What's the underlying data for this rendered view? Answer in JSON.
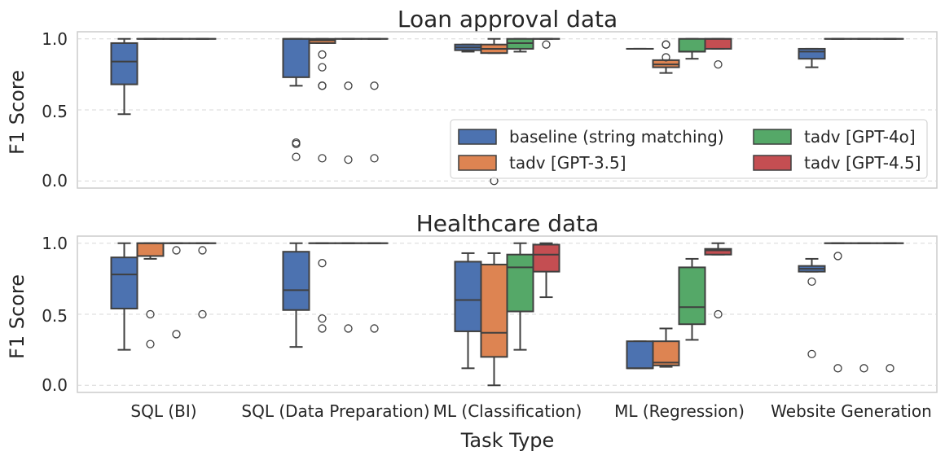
{
  "colors": {
    "baseline": "#4c72b0",
    "gpt35": "#dd8452",
    "gpt4o": "#55a868",
    "gpt45": "#c44e52",
    "line": "#3f3f3f"
  },
  "chart_data": [
    {
      "type": "box",
      "title": "Loan approval data",
      "ylabel": "F1 Score",
      "xlabel": "",
      "ylim": [
        -0.05,
        1.05
      ],
      "yticks": [
        "0.0",
        "0.5",
        "1.0"
      ],
      "grid": true,
      "legend_position": "lower-right",
      "categories": [
        "SQL (BI)",
        "SQL (Data Preparation)",
        "ML (Classification)",
        "ML (Regression)",
        "Website Generation"
      ],
      "series": [
        {
          "name": "baseline (string matching)",
          "boxes": [
            {
              "q1": 0.68,
              "median": 0.84,
              "q3": 0.97,
              "whisker_low": 0.47,
              "whisker_high": 1.0,
              "fliers": []
            },
            {
              "q1": 0.73,
              "median": 1.0,
              "q3": 1.0,
              "whisker_low": 0.67,
              "whisker_high": 1.0,
              "fliers": [
                0.27,
                0.26,
                0.17
              ]
            },
            {
              "q1": 0.92,
              "median": 0.94,
              "q3": 0.96,
              "whisker_low": 0.91,
              "whisker_high": 0.96,
              "fliers": []
            },
            {
              "q1": 0.93,
              "median": 0.93,
              "q3": 0.93,
              "whisker_low": 0.93,
              "whisker_high": 0.93,
              "fliers": []
            },
            {
              "q1": 0.86,
              "median": 0.91,
              "q3": 0.93,
              "whisker_low": 0.8,
              "whisker_high": 0.93,
              "fliers": []
            }
          ]
        },
        {
          "name": "tadv [GPT-3.5]",
          "boxes": [
            {
              "q1": 1.0,
              "median": 1.0,
              "q3": 1.0,
              "whisker_low": 1.0,
              "whisker_high": 1.0,
              "fliers": []
            },
            {
              "q1": 0.97,
              "median": 0.99,
              "q3": 1.0,
              "whisker_low": 0.97,
              "whisker_high": 1.0,
              "fliers": [
                0.89,
                0.8,
                0.67,
                0.67,
                0.16
              ]
            },
            {
              "q1": 0.9,
              "median": 0.93,
              "q3": 0.96,
              "whisker_low": 0.9,
              "whisker_high": 1.0,
              "fliers": [
                0.0
              ]
            },
            {
              "q1": 0.8,
              "median": 0.82,
              "q3": 0.85,
              "whisker_low": 0.76,
              "whisker_high": 0.85,
              "fliers": [
                0.96,
                0.87,
                0.96
              ]
            },
            {
              "q1": 1.0,
              "median": 1.0,
              "q3": 1.0,
              "whisker_low": 1.0,
              "whisker_high": 1.0,
              "fliers": []
            }
          ]
        },
        {
          "name": "tadv [GPT-4o]",
          "boxes": [
            {
              "q1": 1.0,
              "median": 1.0,
              "q3": 1.0,
              "whisker_low": 1.0,
              "whisker_high": 1.0,
              "fliers": []
            },
            {
              "q1": 1.0,
              "median": 1.0,
              "q3": 1.0,
              "whisker_low": 1.0,
              "whisker_high": 1.0,
              "fliers": [
                0.67,
                0.15
              ]
            },
            {
              "q1": 0.93,
              "median": 0.97,
              "q3": 1.0,
              "whisker_low": 0.91,
              "whisker_high": 1.0,
              "fliers": []
            },
            {
              "q1": 0.91,
              "median": 0.91,
              "q3": 1.0,
              "whisker_low": 0.86,
              "whisker_high": 1.0,
              "fliers": []
            },
            {
              "q1": 1.0,
              "median": 1.0,
              "q3": 1.0,
              "whisker_low": 1.0,
              "whisker_high": 1.0,
              "fliers": []
            }
          ]
        },
        {
          "name": "tadv [GPT-4.5]",
          "boxes": [
            {
              "q1": 1.0,
              "median": 1.0,
              "q3": 1.0,
              "whisker_low": 1.0,
              "whisker_high": 1.0,
              "fliers": []
            },
            {
              "q1": 1.0,
              "median": 1.0,
              "q3": 1.0,
              "whisker_low": 1.0,
              "whisker_high": 1.0,
              "fliers": [
                0.67,
                0.16
              ]
            },
            {
              "q1": 1.0,
              "median": 1.0,
              "q3": 1.0,
              "whisker_low": 1.0,
              "whisker_high": 1.0,
              "fliers": [
                0.96
              ]
            },
            {
              "q1": 0.93,
              "median": 1.0,
              "q3": 1.0,
              "whisker_low": 0.93,
              "whisker_high": 1.0,
              "fliers": [
                0.82
              ]
            },
            {
              "q1": 1.0,
              "median": 1.0,
              "q3": 1.0,
              "whisker_low": 1.0,
              "whisker_high": 1.0,
              "fliers": []
            }
          ]
        }
      ]
    },
    {
      "type": "box",
      "title": "Healthcare data",
      "ylabel": "F1 Score",
      "xlabel": "Task Type",
      "ylim": [
        -0.05,
        1.05
      ],
      "yticks": [
        "0.0",
        "0.5",
        "1.0"
      ],
      "grid": true,
      "categories": [
        "SQL (BI)",
        "SQL (Data Preparation)",
        "ML (Classification)",
        "ML (Regression)",
        "Website Generation"
      ],
      "series": [
        {
          "name": "baseline (string matching)",
          "boxes": [
            {
              "q1": 0.54,
              "median": 0.78,
              "q3": 0.9,
              "whisker_low": 0.25,
              "whisker_high": 1.0,
              "fliers": []
            },
            {
              "q1": 0.53,
              "median": 0.67,
              "q3": 0.94,
              "whisker_low": 0.27,
              "whisker_high": 1.0,
              "fliers": []
            },
            {
              "q1": 0.38,
              "median": 0.6,
              "q3": 0.87,
              "whisker_low": 0.12,
              "whisker_high": 0.93,
              "fliers": []
            },
            {
              "q1": 0.12,
              "median": 0.12,
              "q3": 0.31,
              "whisker_low": 0.12,
              "whisker_high": 0.31,
              "fliers": []
            },
            {
              "q1": 0.8,
              "median": 0.82,
              "q3": 0.84,
              "whisker_low": 0.8,
              "whisker_high": 0.89,
              "fliers": [
                0.73,
                0.22
              ]
            }
          ]
        },
        {
          "name": "tadv [GPT-3.5]",
          "boxes": [
            {
              "q1": 0.91,
              "median": 1.0,
              "q3": 1.0,
              "whisker_low": 0.89,
              "whisker_high": 1.0,
              "fliers": [
                0.5,
                0.29
              ]
            },
            {
              "q1": 1.0,
              "median": 1.0,
              "q3": 1.0,
              "whisker_low": 1.0,
              "whisker_high": 1.0,
              "fliers": [
                0.86,
                0.47,
                0.4
              ]
            },
            {
              "q1": 0.2,
              "median": 0.37,
              "q3": 0.85,
              "whisker_low": 0.0,
              "whisker_high": 0.93,
              "fliers": []
            },
            {
              "q1": 0.14,
              "median": 0.16,
              "q3": 0.31,
              "whisker_low": 0.13,
              "whisker_high": 0.4,
              "fliers": []
            },
            {
              "q1": 1.0,
              "median": 1.0,
              "q3": 1.0,
              "whisker_low": 1.0,
              "whisker_high": 1.0,
              "fliers": [
                0.91,
                0.12
              ]
            }
          ]
        },
        {
          "name": "tadv [GPT-4o]",
          "boxes": [
            {
              "q1": 1.0,
              "median": 1.0,
              "q3": 1.0,
              "whisker_low": 1.0,
              "whisker_high": 1.0,
              "fliers": [
                0.95,
                0.36
              ]
            },
            {
              "q1": 1.0,
              "median": 1.0,
              "q3": 1.0,
              "whisker_low": 1.0,
              "whisker_high": 1.0,
              "fliers": [
                0.4
              ]
            },
            {
              "q1": 0.52,
              "median": 0.83,
              "q3": 0.92,
              "whisker_low": 0.25,
              "whisker_high": 1.0,
              "fliers": []
            },
            {
              "q1": 0.43,
              "median": 0.55,
              "q3": 0.83,
              "whisker_low": 0.32,
              "whisker_high": 0.89,
              "fliers": []
            },
            {
              "q1": 1.0,
              "median": 1.0,
              "q3": 1.0,
              "whisker_low": 1.0,
              "whisker_high": 1.0,
              "fliers": [
                0.12
              ]
            }
          ]
        },
        {
          "name": "tadv [GPT-4.5]",
          "boxes": [
            {
              "q1": 1.0,
              "median": 1.0,
              "q3": 1.0,
              "whisker_low": 1.0,
              "whisker_high": 1.0,
              "fliers": [
                0.95,
                0.5
              ]
            },
            {
              "q1": 1.0,
              "median": 1.0,
              "q3": 1.0,
              "whisker_low": 1.0,
              "whisker_high": 1.0,
              "fliers": [
                0.4
              ]
            },
            {
              "q1": 0.8,
              "median": 0.92,
              "q3": 0.99,
              "whisker_low": 0.62,
              "whisker_high": 1.0,
              "fliers": []
            },
            {
              "q1": 0.92,
              "median": 0.95,
              "q3": 0.96,
              "whisker_low": 0.92,
              "whisker_high": 1.0,
              "fliers": [
                0.5
              ]
            },
            {
              "q1": 1.0,
              "median": 1.0,
              "q3": 1.0,
              "whisker_low": 1.0,
              "whisker_high": 1.0,
              "fliers": [
                0.12
              ]
            }
          ]
        }
      ]
    }
  ]
}
